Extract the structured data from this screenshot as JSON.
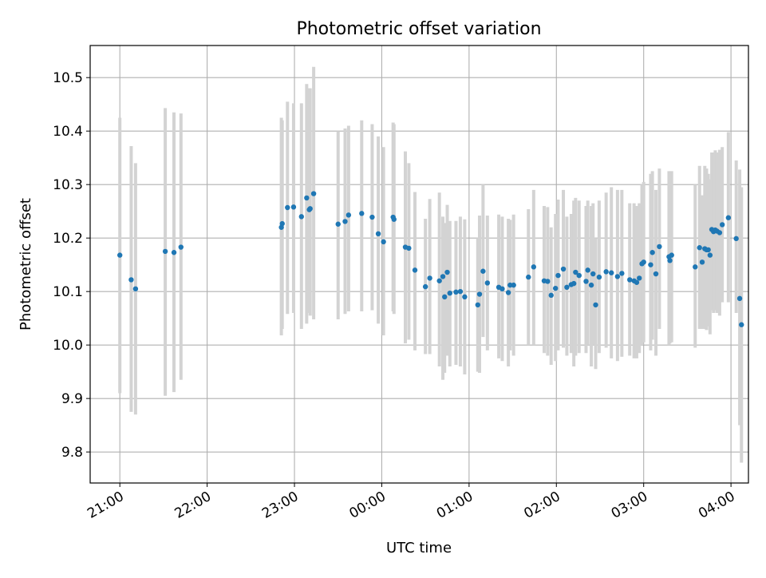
{
  "chart_data": {
    "type": "scatter",
    "title": "Photometric offset variation",
    "xlabel": "UTC time",
    "ylabel": "Photometric offset",
    "grid": true,
    "x_ticks": [
      "21:00",
      "22:00",
      "23:00",
      "00:00",
      "01:00",
      "02:00",
      "03:00",
      "04:00"
    ],
    "y_ticks": [
      "9.8",
      "9.9",
      "10.0",
      "10.1",
      "10.2",
      "10.3",
      "10.4",
      "10.5"
    ],
    "x_range_hours": [
      20.66,
      28.2
    ],
    "ylim": [
      9.742,
      10.56
    ],
    "colors": {
      "point": "#1f77b4",
      "errorbar": "#d3d3d3",
      "grid": "#b0b0b0"
    },
    "series": [
      {
        "values": [
          [
            21.0,
            10.168,
            9.91,
            10.425
          ],
          [
            21.13,
            10.122,
            9.875,
            10.372
          ],
          [
            21.18,
            10.105,
            9.87,
            10.34
          ],
          [
            21.52,
            10.175,
            9.905,
            10.443
          ],
          [
            21.62,
            10.173,
            9.912,
            10.435
          ],
          [
            21.7,
            10.183,
            9.935,
            10.433
          ],
          [
            22.85,
            10.22,
            10.018,
            10.425
          ],
          [
            22.86,
            10.227,
            10.03,
            10.42
          ],
          [
            22.92,
            10.257,
            10.058,
            10.455
          ],
          [
            22.99,
            10.258,
            10.06,
            10.452
          ],
          [
            23.08,
            10.24,
            10.03,
            10.452
          ],
          [
            23.14,
            10.275,
            10.04,
            10.488
          ],
          [
            23.17,
            10.253,
            10.06,
            10.48
          ],
          [
            23.18,
            10.255,
            10.055,
            10.48
          ],
          [
            23.22,
            10.283,
            10.048,
            10.52
          ],
          [
            23.5,
            10.226,
            10.048,
            10.4
          ],
          [
            23.58,
            10.231,
            10.058,
            10.405
          ],
          [
            23.62,
            10.243,
            10.063,
            10.41
          ],
          [
            23.77,
            10.246,
            10.063,
            10.42
          ],
          [
            23.89,
            10.239,
            10.065,
            10.413
          ],
          [
            23.96,
            10.208,
            10.04,
            10.39
          ],
          [
            24.02,
            10.193,
            10.018,
            10.37
          ],
          [
            24.13,
            10.239,
            10.063,
            10.416
          ],
          [
            24.14,
            10.235,
            10.058,
            10.413
          ],
          [
            24.27,
            10.183,
            10.003,
            10.362
          ],
          [
            24.31,
            10.181,
            10.01,
            10.34
          ],
          [
            24.38,
            10.14,
            9.99,
            10.286
          ],
          [
            24.5,
            10.109,
            9.983,
            10.236
          ],
          [
            24.55,
            10.125,
            9.983,
            10.273
          ],
          [
            24.66,
            10.12,
            9.96,
            10.285
          ],
          [
            24.7,
            10.128,
            9.935,
            10.24
          ],
          [
            24.72,
            10.09,
            9.948,
            10.228
          ],
          [
            24.75,
            10.136,
            9.98,
            10.262
          ],
          [
            24.78,
            10.097,
            9.96,
            10.232
          ],
          [
            24.85,
            10.099,
            9.963,
            10.232
          ],
          [
            24.9,
            10.1,
            9.96,
            10.24
          ],
          [
            24.95,
            10.09,
            9.945,
            10.235
          ],
          [
            25.1,
            10.075,
            9.95,
            10.2
          ],
          [
            25.12,
            10.095,
            9.948,
            10.242
          ],
          [
            25.16,
            10.138,
            10.015,
            10.3
          ],
          [
            25.21,
            10.116,
            9.99,
            10.242
          ],
          [
            25.34,
            10.108,
            9.975,
            10.244
          ],
          [
            25.38,
            10.105,
            9.97,
            10.24
          ],
          [
            25.45,
            10.098,
            9.96,
            10.236
          ],
          [
            25.47,
            10.112,
            9.99,
            10.234
          ],
          [
            25.51,
            10.112,
            9.98,
            10.244
          ],
          [
            25.68,
            10.127,
            10.0,
            10.254
          ],
          [
            25.74,
            10.146,
            10.0,
            10.29
          ],
          [
            25.86,
            10.12,
            9.985,
            10.26
          ],
          [
            25.9,
            10.119,
            9.98,
            10.258
          ],
          [
            25.94,
            10.093,
            9.963,
            10.22
          ],
          [
            25.99,
            10.106,
            9.97,
            10.245
          ],
          [
            26.02,
            10.13,
            9.99,
            10.272
          ],
          [
            26.08,
            10.142,
            9.995,
            10.29
          ],
          [
            26.12,
            10.108,
            9.98,
            10.24
          ],
          [
            26.17,
            10.113,
            9.985,
            10.245
          ],
          [
            26.2,
            10.115,
            9.96,
            10.27
          ],
          [
            26.22,
            10.136,
            9.98,
            10.275
          ],
          [
            26.26,
            10.13,
            9.985,
            10.27
          ],
          [
            26.34,
            10.119,
            9.985,
            10.26
          ],
          [
            26.36,
            10.14,
            10.0,
            10.27
          ],
          [
            26.4,
            10.112,
            9.96,
            10.26
          ],
          [
            26.42,
            10.133,
            10.0,
            10.265
          ],
          [
            26.45,
            10.075,
            9.955,
            10.2
          ],
          [
            26.49,
            10.127,
            9.985,
            10.27
          ],
          [
            26.57,
            10.137,
            9.995,
            10.285
          ],
          [
            26.63,
            10.135,
            9.975,
            10.295
          ],
          [
            26.7,
            10.128,
            9.97,
            10.29
          ],
          [
            26.75,
            10.134,
            9.978,
            10.29
          ],
          [
            26.84,
            10.122,
            9.98,
            10.265
          ],
          [
            26.89,
            10.12,
            9.975,
            10.265
          ],
          [
            26.92,
            10.117,
            9.975,
            10.26
          ],
          [
            26.95,
            10.125,
            9.985,
            10.265
          ],
          [
            26.98,
            10.152,
            10.0,
            10.3
          ],
          [
            27.0,
            10.155,
            10.005,
            10.305
          ],
          [
            27.08,
            10.15,
            9.99,
            10.32
          ],
          [
            27.1,
            10.173,
            10.01,
            10.325
          ],
          [
            27.14,
            10.133,
            9.98,
            10.29
          ],
          [
            27.18,
            10.184,
            10.03,
            10.33
          ],
          [
            27.29,
            10.165,
            10.0,
            10.325
          ],
          [
            27.3,
            10.158,
            10.003,
            10.316
          ],
          [
            27.32,
            10.168,
            10.005,
            10.325
          ],
          [
            27.59,
            10.146,
            9.995,
            10.3
          ],
          [
            27.64,
            10.182,
            10.03,
            10.335
          ],
          [
            27.67,
            10.155,
            10.03,
            10.28
          ],
          [
            27.7,
            10.18,
            10.03,
            10.335
          ],
          [
            27.72,
            10.178,
            10.028,
            10.33
          ],
          [
            27.74,
            10.178,
            10.035,
            10.32
          ],
          [
            27.76,
            10.168,
            10.02,
            10.31
          ],
          [
            27.78,
            10.216,
            10.065,
            10.36
          ],
          [
            27.8,
            10.212,
            10.06,
            10.36
          ],
          [
            27.82,
            10.215,
            10.065,
            10.364
          ],
          [
            27.84,
            10.213,
            10.06,
            10.36
          ],
          [
            27.87,
            10.21,
            10.055,
            10.365
          ],
          [
            27.9,
            10.225,
            10.08,
            10.37
          ],
          [
            27.97,
            10.238,
            10.08,
            10.398
          ],
          [
            28.06,
            10.199,
            10.06,
            10.345
          ],
          [
            28.1,
            10.087,
            9.85,
            10.328
          ],
          [
            28.12,
            10.038,
            9.78,
            10.295
          ]
        ]
      }
    ]
  }
}
